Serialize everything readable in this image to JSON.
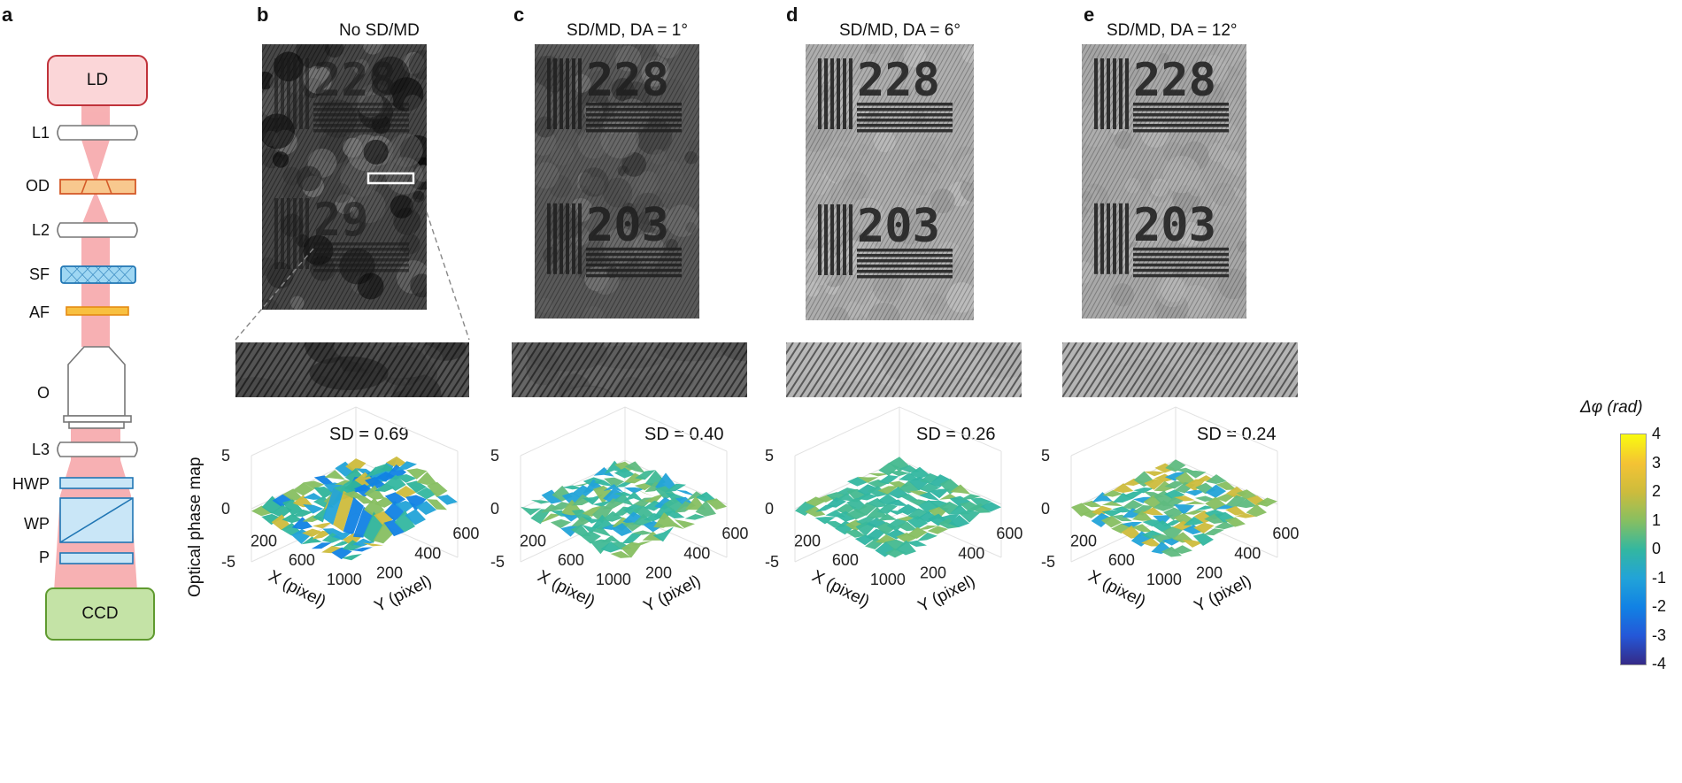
{
  "panels": {
    "a": {
      "letter": "a",
      "components": {
        "ld": "LD",
        "l1": "L1",
        "od": "OD",
        "l2": "L2",
        "sf": "SF",
        "af": "AF",
        "o": "O",
        "l3": "L3",
        "hwp": "HWP",
        "wp": "WP",
        "p": "P",
        "ccd": "CCD"
      }
    },
    "b": {
      "letter": "b",
      "caption": "No SD/MD",
      "sd_label": "SD = 0.69",
      "noise": 0.85,
      "brightness": 0.28
    },
    "c": {
      "letter": "c",
      "caption": "SD/MD, DA = 1°",
      "sd_label": "SD = 0.40",
      "noise": 0.55,
      "brightness": 0.35
    },
    "d": {
      "letter": "d",
      "caption": "SD/MD, DA = 6°",
      "sd_label": "SD = 0.26",
      "noise": 0.3,
      "brightness": 0.68
    },
    "e": {
      "letter": "e",
      "caption": "SD/MD, DA = 12°",
      "sd_label": "SD = 0.24",
      "noise": 0.28,
      "brightness": 0.66
    }
  },
  "target_numbers": {
    "top": "228",
    "bottom": "203",
    "bottom_degraded": "29"
  },
  "phase_map": {
    "zlabel": "Optical phase map",
    "z_ticks": [
      "5",
      "0",
      "-5"
    ],
    "x_ticks": [
      "200",
      "600",
      "1000"
    ],
    "y_ticks": [
      "200",
      "400",
      "600"
    ],
    "xlabel": "X (pixel)",
    "ylabel": "Y (pixel)"
  },
  "colorbar": {
    "title": "Δφ (rad)",
    "ticks": [
      "4",
      "3",
      "2",
      "1",
      "0",
      "-1",
      "-2",
      "-3",
      "-4"
    ],
    "colors": [
      "#f9fb0e",
      "#f4c334",
      "#cdbc3c",
      "#87bf61",
      "#33b7a0",
      "#22a3d8",
      "#1182e4",
      "#2458d8",
      "#352a87"
    ]
  }
}
